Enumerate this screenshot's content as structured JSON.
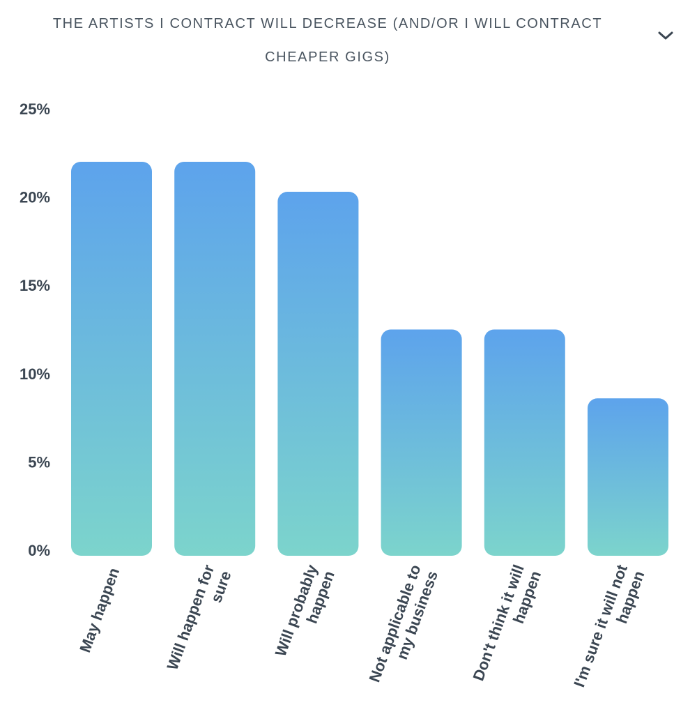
{
  "header": {
    "title": "THE ARTISTS I CONTRACT WILL DECREASE (AND/OR I WILL CONTRACT CHEAPER GIGS)"
  },
  "chart_data": {
    "type": "bar",
    "title": "THE ARTISTS I CONTRACT WILL DECREASE (AND/OR I WILL CONTRACT CHEAPER GIGS)",
    "categories": [
      [
        "May happen"
      ],
      [
        "Will happen for",
        "sure"
      ],
      [
        "Will probably",
        "happen"
      ],
      [
        "Not applicable to",
        "my business"
      ],
      [
        "Don't think it will",
        "happen"
      ],
      [
        "I'm sure it will not",
        "happen"
      ]
    ],
    "values": [
      22.0,
      22.0,
      20.3,
      12.5,
      12.5,
      8.6
    ],
    "yticks": [
      "0%",
      "5%",
      "10%",
      "15%",
      "20%",
      "25%"
    ],
    "ytick_values": [
      0,
      5,
      10,
      15,
      20,
      25
    ],
    "ylim": [
      0,
      25
    ],
    "xlabel": "",
    "ylabel": "",
    "grid": false,
    "colors": {
      "top": "#5da3ec",
      "bottom": "#7cd4cc",
      "text": "#3b4652"
    }
  }
}
